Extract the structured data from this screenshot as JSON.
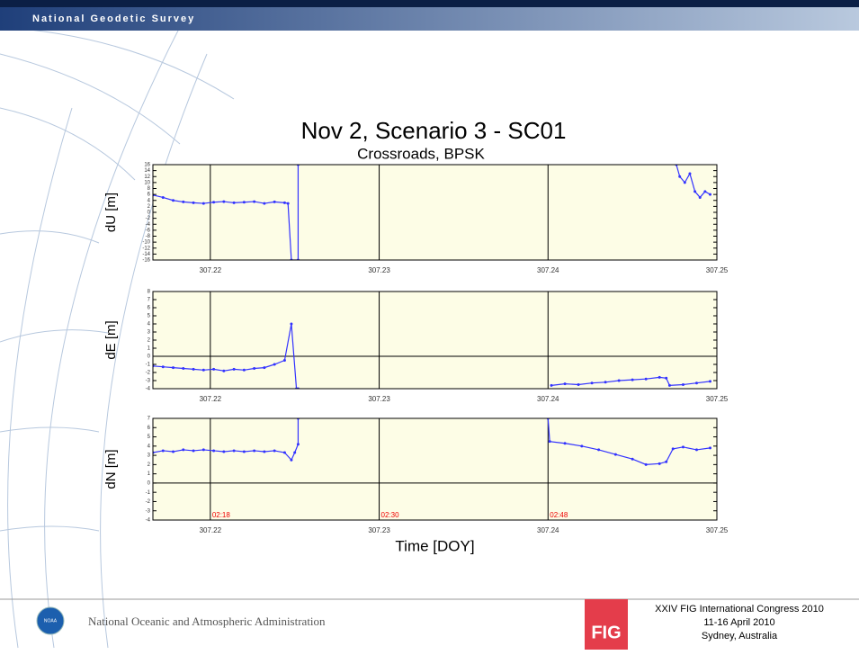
{
  "header": "National Geodetic Survey",
  "title": "Nov 2, Scenario 3 - SC01",
  "subtitle": "Crossroads, BPSK",
  "footer": {
    "agency": "National Oceanic and Atmospheric Administration",
    "logo_left": "NOAA",
    "logo_right": "FIG",
    "event": [
      "XXIV FIG International Congress 2010",
      "11-16 April 2010",
      "Sydney, Australia"
    ]
  },
  "chart_data": [
    {
      "type": "line",
      "ylabel": "dU [m]",
      "color": "#3333ff",
      "grid": "x",
      "xlim": [
        307.2166,
        307.25
      ],
      "xticks": [
        307.22,
        307.23,
        307.24,
        307.25
      ],
      "ylim": [
        -16,
        16
      ],
      "yticks": [
        -16,
        -14,
        -12,
        -10,
        -8,
        -6,
        -4,
        -2,
        0,
        2,
        4,
        6,
        8,
        10,
        12,
        14,
        16
      ],
      "x": [
        307.2166,
        307.2172,
        307.2178,
        307.2184,
        307.219,
        307.2196,
        307.2202,
        307.2208,
        307.2214,
        307.222,
        307.2226,
        307.2232,
        307.2238,
        307.2244,
        307.2246,
        307.2248,
        307.2252,
        307.2252,
        null,
        307.2476,
        307.2478,
        307.2481,
        307.2484,
        307.2487,
        307.249,
        307.2493,
        307.2496
      ],
      "values": [
        5.8,
        5.0,
        4.0,
        3.5,
        3.2,
        3.0,
        3.4,
        3.6,
        3.2,
        3.4,
        3.6,
        3.0,
        3.5,
        3.2,
        3.0,
        -16,
        -16,
        16,
        null,
        16,
        12,
        10,
        13,
        7,
        5,
        7,
        6
      ]
    },
    {
      "type": "line",
      "ylabel": "dE [m]",
      "color": "#3333ff",
      "grid": "x",
      "hlines": [
        0
      ],
      "xlim": [
        307.2166,
        307.25
      ],
      "xticks": [
        307.22,
        307.23,
        307.24,
        307.25
      ],
      "ylim": [
        -4,
        8
      ],
      "yticks": [
        -4,
        -3,
        -2,
        -1,
        0,
        1,
        2,
        3,
        4,
        5,
        6,
        7,
        8
      ],
      "x": [
        307.2166,
        307.2172,
        307.2178,
        307.2184,
        307.219,
        307.2196,
        307.2202,
        307.2208,
        307.2214,
        307.222,
        307.2226,
        307.2232,
        307.2238,
        307.2244,
        307.2248,
        307.2251,
        307.2252,
        null,
        307.2402,
        307.241,
        307.2418,
        307.2426,
        307.2434,
        307.2442,
        307.245,
        307.2458,
        307.2466,
        307.247,
        307.2472,
        307.248,
        307.2488,
        307.2496
      ],
      "values": [
        -1.2,
        -1.3,
        -1.4,
        -1.5,
        -1.6,
        -1.7,
        -1.6,
        -1.8,
        -1.6,
        -1.7,
        -1.5,
        -1.4,
        -1.0,
        -0.5,
        4.0,
        -4,
        -4,
        null,
        -3.6,
        -3.4,
        -3.5,
        -3.3,
        -3.2,
        -3.0,
        -2.9,
        -2.8,
        -2.6,
        -2.7,
        -3.6,
        -3.5,
        -3.3,
        -3.1
      ]
    },
    {
      "type": "line",
      "ylabel": "dN [m]",
      "xlabel": "Time [DOY]",
      "color": "#3333ff",
      "grid": "x",
      "hlines": [
        0
      ],
      "xlim": [
        307.2166,
        307.25
      ],
      "xticks": [
        307.22,
        307.23,
        307.24,
        307.25
      ],
      "ylim": [
        -4,
        7
      ],
      "yticks": [
        -4,
        -3,
        -2,
        -1,
        0,
        1,
        2,
        3,
        4,
        5,
        6,
        7
      ],
      "annotations": [
        {
          "x": 307.22,
          "text": "02:18"
        },
        {
          "x": 307.23,
          "text": "02:30"
        },
        {
          "x": 307.24,
          "text": "02:48"
        }
      ],
      "x": [
        307.2166,
        307.2172,
        307.2178,
        307.2184,
        307.219,
        307.2196,
        307.2202,
        307.2208,
        307.2214,
        307.222,
        307.2226,
        307.2232,
        307.2238,
        307.2244,
        307.2248,
        307.225,
        307.2252,
        307.2252,
        null,
        307.24,
        307.2401,
        307.241,
        307.242,
        307.243,
        307.244,
        307.245,
        307.2458,
        307.2466,
        307.247,
        307.2474,
        307.248,
        307.2488,
        307.2496
      ],
      "values": [
        3.3,
        3.5,
        3.4,
        3.6,
        3.5,
        3.6,
        3.5,
        3.4,
        3.5,
        3.4,
        3.5,
        3.4,
        3.5,
        3.3,
        2.5,
        3.3,
        4.2,
        7,
        null,
        7,
        4.5,
        4.3,
        4.0,
        3.6,
        3.1,
        2.6,
        2.0,
        2.1,
        2.3,
        3.7,
        3.9,
        3.6,
        3.8
      ]
    }
  ]
}
